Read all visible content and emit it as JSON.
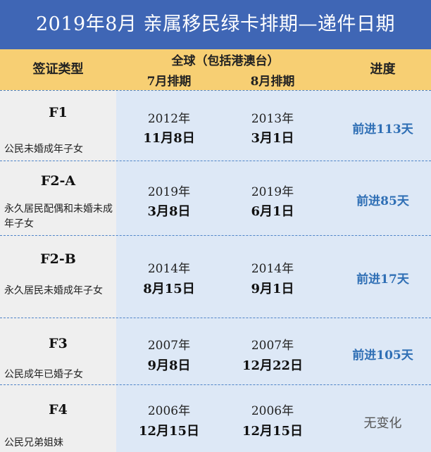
{
  "title": "2019年8月  亲属移民绿卡排期—递件日期",
  "header": {
    "visa_type": "签证类型",
    "global": "全球（包括港澳台）",
    "july": "7月排期",
    "august": "8月排期",
    "progress": "进度"
  },
  "colors": {
    "title_bg": "#3f66b5",
    "header_bg": "#f7cf73",
    "progress_blue": "#2f6fb5",
    "progress_gray": "#555555"
  },
  "rows": [
    {
      "code": "F1",
      "desc": "公民未婚成年子女",
      "jul_year": "2012年",
      "jul_md": "11月8日",
      "aug_year": "2013年",
      "aug_md": "3月1日",
      "progress": "前进113天"
    },
    {
      "code": "F2-A",
      "desc": "永久居民配偶和未婚未成年子女",
      "jul_year": "2019年",
      "jul_md": "3月8日",
      "aug_year": "2019年",
      "aug_md": "6月1日",
      "progress": "前进85天"
    },
    {
      "code": "F2-B",
      "desc": "永久居民未婚成年子女",
      "jul_year": "2014年",
      "jul_md": "8月15日",
      "aug_year": "2014年",
      "aug_md": "9月1日",
      "progress": "前进17天"
    },
    {
      "code": "F3",
      "desc": "公民成年已婚子女",
      "jul_year": "2007年",
      "jul_md": "9月8日",
      "aug_year": "2007年",
      "aug_md": "12月22日",
      "progress": "前进105天"
    },
    {
      "code": "F4",
      "desc": "公民兄弟姐妹",
      "jul_year": "2006年",
      "jul_md": "12月15日",
      "aug_year": "2006年",
      "aug_md": "12月15日",
      "progress": "无变化"
    }
  ]
}
